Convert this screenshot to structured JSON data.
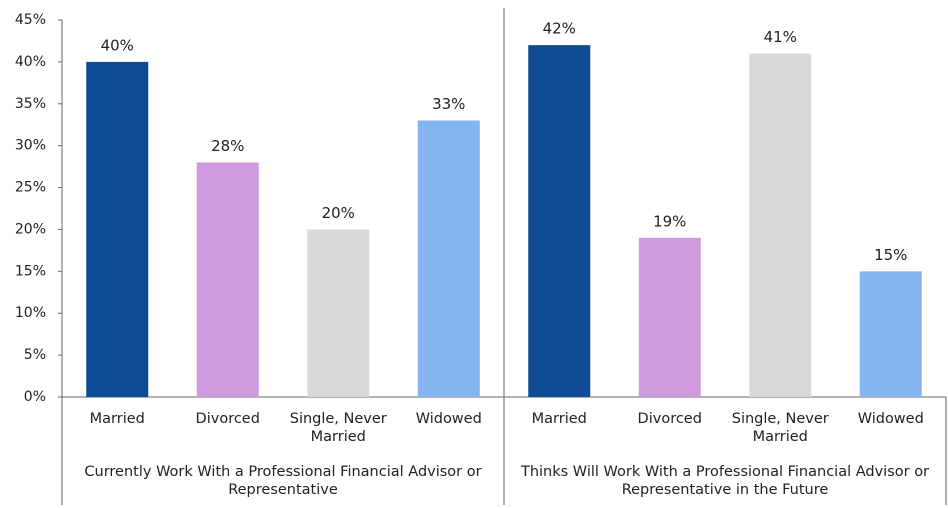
{
  "chart_data": {
    "type": "bar",
    "ylim": [
      0,
      45
    ],
    "yticks": [
      {
        "value": 0,
        "label": "0%"
      },
      {
        "value": 5,
        "label": "5%"
      },
      {
        "value": 10,
        "label": "10%"
      },
      {
        "value": 15,
        "label": "15%"
      },
      {
        "value": 20,
        "label": "20%"
      },
      {
        "value": 25,
        "label": "25%"
      },
      {
        "value": 30,
        "label": "30%"
      },
      {
        "value": 35,
        "label": "35%"
      },
      {
        "value": 40,
        "label": "40%"
      },
      {
        "value": 45,
        "label": "45%"
      }
    ],
    "colors": [
      "#0f4c96",
      "#cf9bde",
      "#d9d9d9",
      "#84b5ef"
    ],
    "grid": false,
    "groups": [
      {
        "name": "Currently Work With a Professional Financial Advisor or Representative",
        "categories": [
          "Married",
          "Divorced",
          "Single, Never Married",
          "Widowed"
        ],
        "values": [
          40,
          28,
          20,
          33
        ],
        "value_labels": [
          "40%",
          "28%",
          "20%",
          "33%"
        ]
      },
      {
        "name": "Thinks Will Work With a Professional Financial Advisor or Representative in the Future",
        "categories": [
          "Married",
          "Divorced",
          "Single, Never Married",
          "Widowed"
        ],
        "values": [
          42,
          19,
          41,
          15
        ],
        "value_labels": [
          "42%",
          "19%",
          "41%",
          "15%"
        ]
      }
    ]
  }
}
